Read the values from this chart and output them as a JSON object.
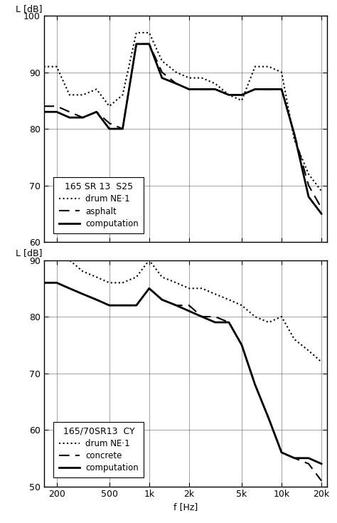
{
  "freqs": [
    160,
    200,
    250,
    315,
    400,
    500,
    630,
    800,
    1000,
    1250,
    1600,
    2000,
    2500,
    3150,
    4000,
    5000,
    6300,
    8000,
    10000,
    12500,
    16000,
    20000
  ],
  "plot1": {
    "title": "165 SR 13  S25",
    "ylim": [
      60,
      100
    ],
    "yticks": [
      60,
      70,
      80,
      90,
      100
    ],
    "drum": [
      91,
      91,
      86,
      86,
      87,
      84,
      86,
      97,
      97,
      92,
      90,
      89,
      89,
      88,
      86,
      85,
      91,
      91,
      90,
      78,
      72,
      69
    ],
    "asphalt": [
      84,
      84,
      83,
      82,
      83,
      81,
      80,
      95,
      95,
      90,
      88,
      87,
      87,
      87,
      86,
      86,
      87,
      87,
      87,
      79,
      70,
      66
    ],
    "computation": [
      83,
      83,
      82,
      82,
      83,
      80,
      80,
      95,
      95,
      89,
      88,
      87,
      87,
      87,
      86,
      86,
      87,
      87,
      87,
      79,
      68,
      65
    ],
    "legend_label2": "asphalt",
    "ylabel": "L [dB]"
  },
  "plot2": {
    "title": "165/70SR13  CY",
    "ylim": [
      50,
      90
    ],
    "yticks": [
      50,
      60,
      70,
      80,
      90
    ],
    "drum": [
      91,
      91,
      90,
      88,
      87,
      86,
      86,
      87,
      90,
      87,
      86,
      85,
      85,
      84,
      83,
      82,
      80,
      79,
      80,
      76,
      74,
      72
    ],
    "concrete": [
      86,
      86,
      85,
      84,
      83,
      82,
      82,
      82,
      85,
      83,
      82,
      82,
      80,
      80,
      79,
      75,
      68,
      62,
      56,
      55,
      54,
      51
    ],
    "computation": [
      86,
      86,
      85,
      84,
      83,
      82,
      82,
      82,
      85,
      83,
      82,
      81,
      80,
      79,
      79,
      75,
      68,
      62,
      56,
      55,
      55,
      54
    ],
    "legend_label2": "concrete",
    "ylabel": "L [dB]"
  },
  "xlabel": "f [Hz]",
  "xtick_labels": [
    "200",
    "500",
    "1k",
    "2k",
    "5k",
    "10k",
    "20k"
  ],
  "xtick_positions": [
    200,
    500,
    1000,
    2000,
    5000,
    10000,
    20000
  ],
  "xlim": [
    160,
    22000
  ],
  "figsize": [
    4.74,
    7.35
  ],
  "dpi": 100
}
